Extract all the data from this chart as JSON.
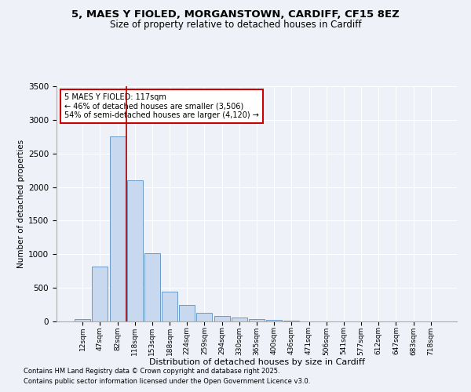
{
  "title1": "5, MAES Y FIOLED, MORGANSTOWN, CARDIFF, CF15 8EZ",
  "title2": "Size of property relative to detached houses in Cardiff",
  "xlabel": "Distribution of detached houses by size in Cardiff",
  "ylabel": "Number of detached properties",
  "categories": [
    "12sqm",
    "47sqm",
    "82sqm",
    "118sqm",
    "153sqm",
    "188sqm",
    "224sqm",
    "259sqm",
    "294sqm",
    "330sqm",
    "365sqm",
    "400sqm",
    "436sqm",
    "471sqm",
    "506sqm",
    "541sqm",
    "577sqm",
    "612sqm",
    "647sqm",
    "683sqm",
    "718sqm"
  ],
  "values": [
    30,
    820,
    2750,
    2100,
    1020,
    440,
    240,
    130,
    80,
    55,
    40,
    18,
    8,
    5,
    3,
    2,
    1,
    1,
    0,
    0,
    0
  ],
  "bar_color": "#c8d8ee",
  "bar_edge_color": "#5a8fc0",
  "vline_color": "#aa0000",
  "annotation_text": "5 MAES Y FIOLED: 117sqm\n← 46% of detached houses are smaller (3,506)\n54% of semi-detached houses are larger (4,120) →",
  "annotation_box_color": "#cc0000",
  "ylim": [
    0,
    3500
  ],
  "yticks": [
    0,
    500,
    1000,
    1500,
    2000,
    2500,
    3000,
    3500
  ],
  "footnote1": "Contains HM Land Registry data © Crown copyright and database right 2025.",
  "footnote2": "Contains public sector information licensed under the Open Government Licence v3.0.",
  "background_color": "#eef2f8"
}
